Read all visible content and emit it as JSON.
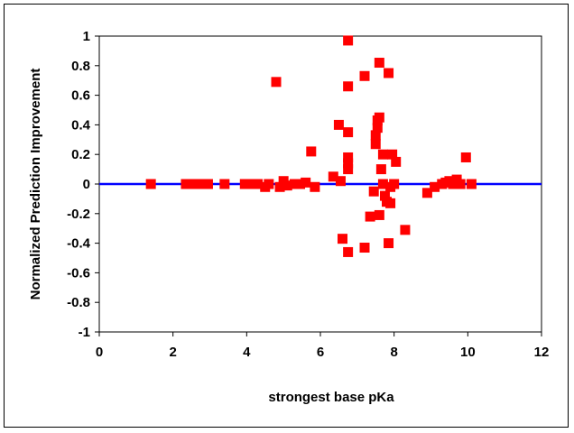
{
  "chart_data": {
    "type": "scatter",
    "title": "",
    "xlabel": "strongest base pKa",
    "ylabel": "Normalized Prediction Improvement",
    "xlim": [
      0,
      12
    ],
    "ylim": [
      -1,
      1
    ],
    "xticks": [
      "0",
      "2",
      "4",
      "6",
      "8",
      "10",
      "12"
    ],
    "yticks": [
      "1",
      "0.8",
      "0.6",
      "0.4",
      "0.2",
      "0",
      "-0.2",
      "-0.4",
      "-0.6",
      "-0.8",
      "-1"
    ],
    "grid": false,
    "legend": "none",
    "reference_line": {
      "y": 0,
      "color": "#0000ff"
    },
    "marker_color": "#ff0000",
    "points": [
      {
        "x": 1.4,
        "y": 0.0
      },
      {
        "x": 2.35,
        "y": 0.0
      },
      {
        "x": 2.5,
        "y": 0.0
      },
      {
        "x": 2.6,
        "y": 0.0
      },
      {
        "x": 2.7,
        "y": 0.0
      },
      {
        "x": 2.8,
        "y": 0.0
      },
      {
        "x": 2.95,
        "y": 0.0
      },
      {
        "x": 3.4,
        "y": 0.0
      },
      {
        "x": 3.95,
        "y": 0.0
      },
      {
        "x": 4.1,
        "y": 0.0
      },
      {
        "x": 4.3,
        "y": 0.0
      },
      {
        "x": 4.5,
        "y": -0.02
      },
      {
        "x": 4.6,
        "y": 0.0
      },
      {
        "x": 4.8,
        "y": 0.69
      },
      {
        "x": 4.9,
        "y": -0.02
      },
      {
        "x": 5.0,
        "y": 0.02
      },
      {
        "x": 5.1,
        "y": -0.01
      },
      {
        "x": 5.3,
        "y": 0.0
      },
      {
        "x": 5.45,
        "y": 0.0
      },
      {
        "x": 5.6,
        "y": 0.01
      },
      {
        "x": 5.75,
        "y": 0.22
      },
      {
        "x": 5.85,
        "y": -0.02
      },
      {
        "x": 6.35,
        "y": 0.05
      },
      {
        "x": 6.5,
        "y": 0.4
      },
      {
        "x": 6.55,
        "y": 0.02
      },
      {
        "x": 6.6,
        "y": -0.37
      },
      {
        "x": 6.75,
        "y": 0.97
      },
      {
        "x": 6.75,
        "y": 0.66
      },
      {
        "x": 6.75,
        "y": 0.35
      },
      {
        "x": 6.75,
        "y": 0.18
      },
      {
        "x": 6.75,
        "y": 0.14
      },
      {
        "x": 6.75,
        "y": 0.1
      },
      {
        "x": 6.75,
        "y": -0.46
      },
      {
        "x": 7.2,
        "y": 0.73
      },
      {
        "x": 7.2,
        "y": -0.43
      },
      {
        "x": 7.35,
        "y": -0.22
      },
      {
        "x": 7.45,
        "y": -0.05
      },
      {
        "x": 7.5,
        "y": 0.27
      },
      {
        "x": 7.5,
        "y": 0.33
      },
      {
        "x": 7.55,
        "y": 0.38
      },
      {
        "x": 7.55,
        "y": 0.43
      },
      {
        "x": 7.6,
        "y": 0.82
      },
      {
        "x": 7.6,
        "y": 0.45
      },
      {
        "x": 7.6,
        "y": -0.21
      },
      {
        "x": 7.65,
        "y": 0.1
      },
      {
        "x": 7.7,
        "y": 0.2
      },
      {
        "x": 7.7,
        "y": 0.0
      },
      {
        "x": 7.75,
        "y": -0.08
      },
      {
        "x": 7.8,
        "y": -0.12
      },
      {
        "x": 7.85,
        "y": 0.75
      },
      {
        "x": 7.85,
        "y": -0.4
      },
      {
        "x": 7.9,
        "y": -0.02
      },
      {
        "x": 7.9,
        "y": -0.13
      },
      {
        "x": 7.95,
        "y": 0.2
      },
      {
        "x": 8.0,
        "y": 0.0
      },
      {
        "x": 8.05,
        "y": 0.15
      },
      {
        "x": 8.3,
        "y": -0.31
      },
      {
        "x": 8.9,
        "y": -0.06
      },
      {
        "x": 9.1,
        "y": -0.02
      },
      {
        "x": 9.3,
        "y": 0.0
      },
      {
        "x": 9.4,
        "y": 0.01
      },
      {
        "x": 9.5,
        "y": 0.02
      },
      {
        "x": 9.6,
        "y": 0.0
      },
      {
        "x": 9.7,
        "y": 0.03
      },
      {
        "x": 9.8,
        "y": 0.0
      },
      {
        "x": 9.95,
        "y": 0.18
      },
      {
        "x": 10.1,
        "y": 0.0
      }
    ]
  }
}
